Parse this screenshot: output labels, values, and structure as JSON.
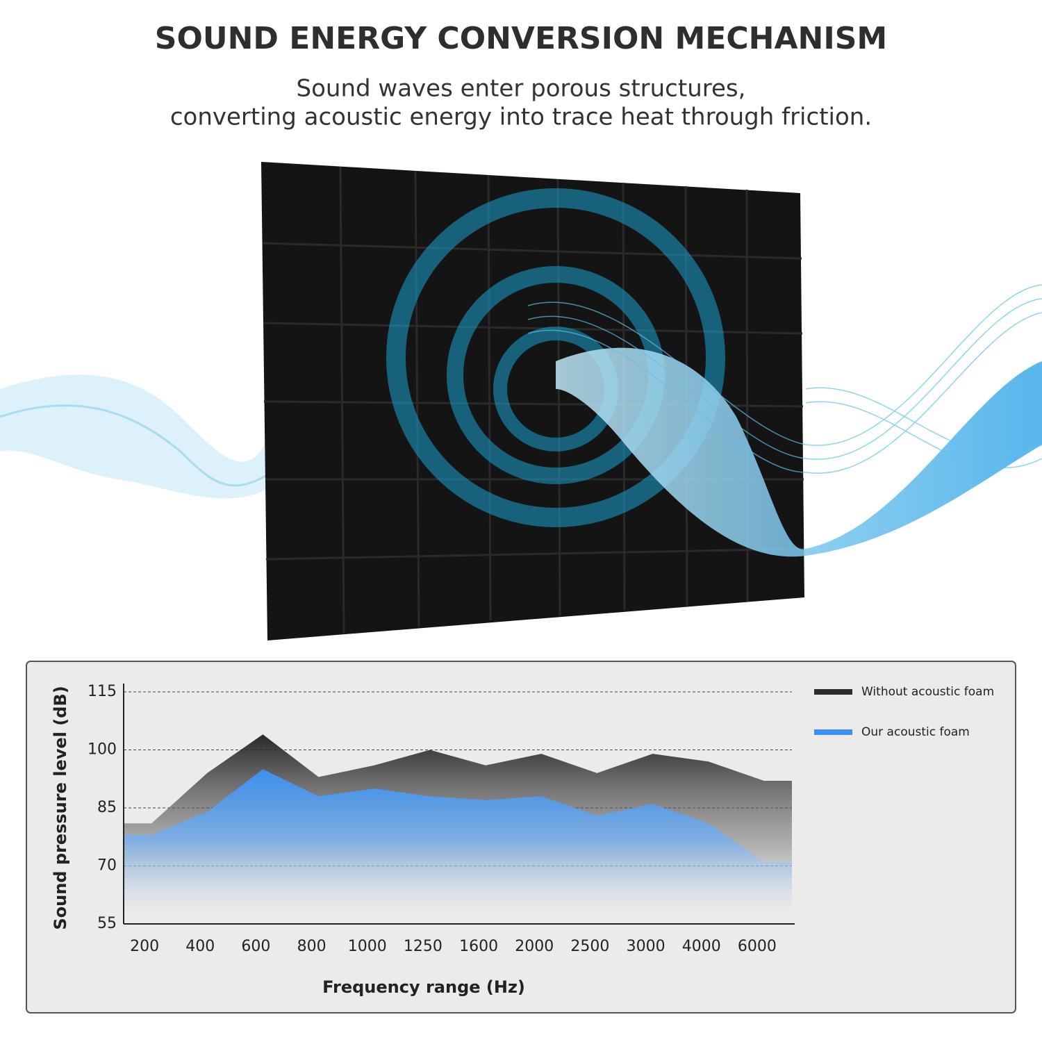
{
  "header": {
    "title": "SOUND ENERGY CONVERSION MECHANISM",
    "subtitle": [
      "Sound waves enter porous structures,",
      "converting acoustic energy into trace heat through friction."
    ]
  },
  "chart_data": {
    "type": "area",
    "x_label": "Frequency range (Hz)",
    "y_label": "Sound pressure level (dB)",
    "categories": [
      "200",
      "400",
      "600",
      "800",
      "1000",
      "1250",
      "1600",
      "2000",
      "2500",
      "3000",
      "4000",
      "6000"
    ],
    "series": [
      {
        "name": "Without acoustic foam",
        "color": "#2b2b2b",
        "values": [
          81,
          94,
          104,
          93,
          96,
          100,
          96,
          99,
          94,
          99,
          97,
          92
        ]
      },
      {
        "name": "Our acoustic foam",
        "color": "#3d8ff0",
        "values": [
          78,
          84,
          95,
          88,
          90,
          88,
          87,
          88,
          83,
          86,
          81,
          71
        ]
      }
    ],
    "ylim": [
      55,
      115
    ],
    "yticks": [
      55,
      70,
      85,
      100,
      115
    ],
    "grid": true,
    "legend": "top-right"
  }
}
